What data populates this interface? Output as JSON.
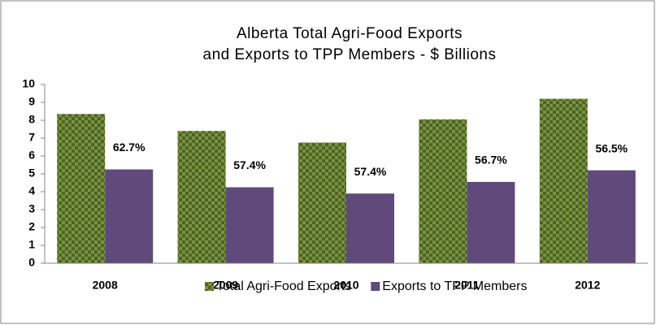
{
  "chart_data": {
    "type": "bar",
    "title": [
      "Alberta Total Agri-Food Exports",
      "and Exports to TPP Members - $ Billions"
    ],
    "categories": [
      "2008",
      "2009",
      "2010",
      "2011",
      "2012"
    ],
    "series": [
      {
        "name": "Total Agri-Food Exports",
        "color": "#77933c",
        "values": [
          8.35,
          7.4,
          6.75,
          8.05,
          9.2
        ]
      },
      {
        "name": "Exports to TPP Members",
        "color": "#604a7b",
        "values": [
          5.25,
          4.25,
          3.9,
          4.55,
          5.2
        ]
      }
    ],
    "annotations": [
      "62.7%",
      "57.4%",
      "57.4%",
      "56.7%",
      "56.5%"
    ],
    "ylim": [
      0,
      10
    ],
    "yticks": [
      0,
      1,
      2,
      3,
      4,
      5,
      6,
      7,
      8,
      9,
      10
    ],
    "grid": false,
    "legend": "bottom"
  }
}
